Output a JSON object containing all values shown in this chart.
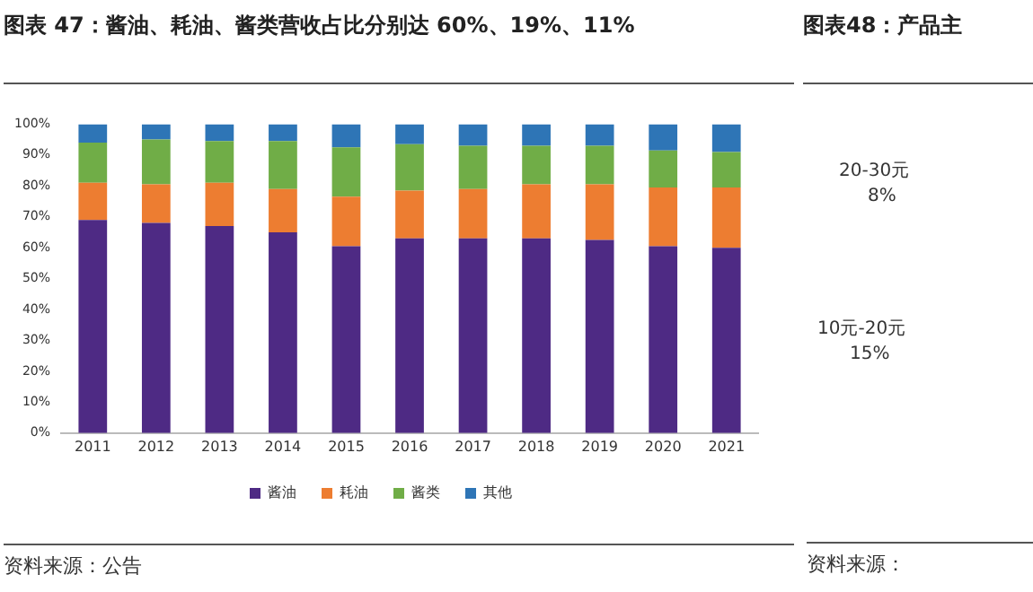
{
  "chart_data": [
    {
      "type": "bar",
      "title": "图表 47：酱油、耗油、酱类营收占比分别达 60%、19%、11%",
      "categories": [
        "2011",
        "2012",
        "2013",
        "2014",
        "2015",
        "2016",
        "2017",
        "2018",
        "2019",
        "2020",
        "2021"
      ],
      "stacked": true,
      "series": [
        {
          "name": "酱油",
          "color": "#4e2a84",
          "values": [
            69,
            68,
            67,
            65,
            60.5,
            63,
            63,
            63,
            62.5,
            60.5,
            60
          ]
        },
        {
          "name": "耗油",
          "color": "#ed7d31",
          "values": [
            12,
            12.5,
            14,
            14,
            16,
            15.5,
            16,
            17.5,
            18,
            19,
            19.5
          ]
        },
        {
          "name": "酱类",
          "color": "#70ad47",
          "values": [
            13,
            14.5,
            13.5,
            15.5,
            16,
            15,
            14,
            12.5,
            12.5,
            12,
            11.5
          ]
        },
        {
          "name": "其他",
          "color": "#2e75b6",
          "values": [
            6,
            5,
            5.5,
            5.5,
            7.5,
            6.5,
            7,
            7,
            7,
            8.5,
            9
          ]
        }
      ],
      "ylim": [
        0,
        100
      ],
      "yticks": [
        {
          "value": 0,
          "label": "0%"
        },
        {
          "value": 10,
          "label": "10%"
        },
        {
          "value": 20,
          "label": "20%"
        },
        {
          "value": 30,
          "label": "30%"
        },
        {
          "value": 40,
          "label": "40%"
        },
        {
          "value": 50,
          "label": "50%"
        },
        {
          "value": 60,
          "label": "60%"
        },
        {
          "value": 70,
          "label": "70%"
        },
        {
          "value": 80,
          "label": "80%"
        },
        {
          "value": 90,
          "label": "90%"
        },
        {
          "value": 100,
          "label": "100%"
        }
      ],
      "grid": false,
      "legend": "bottom",
      "annotations": [
        "资料来源：公告"
      ]
    },
    {
      "type": "other",
      "title": "图表48：产品主",
      "annotations": [
        "20-30元",
        "8%",
        "10元-20元",
        "15%",
        "资料来源："
      ]
    }
  ]
}
